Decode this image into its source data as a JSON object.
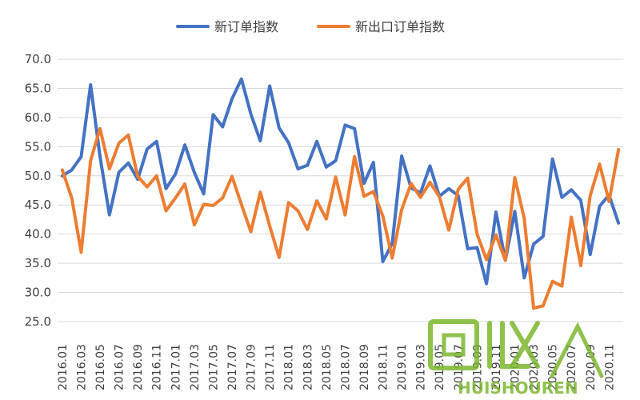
{
  "chart_data": {
    "type": "line",
    "title": "",
    "xlabel": "",
    "ylabel": "",
    "ylim": [
      25.0,
      70.0
    ],
    "y_ticks": [
      "25.0",
      "30.0",
      "35.0",
      "40.0",
      "45.0",
      "50.0",
      "55.0",
      "60.0",
      "65.0",
      "70.0"
    ],
    "y_tick_values": [
      25,
      30,
      35,
      40,
      45,
      50,
      55,
      60,
      65,
      70
    ],
    "grid": true,
    "legend_position": "top",
    "x": [
      "2016.01",
      "2016.02",
      "2016.03",
      "2016.04",
      "2016.05",
      "2016.06",
      "2016.07",
      "2016.08",
      "2016.09",
      "2016.10",
      "2016.11",
      "2016.12",
      "2017.01",
      "2017.02",
      "2017.03",
      "2017.04",
      "2017.05",
      "2017.06",
      "2017.07",
      "2017.08",
      "2017.09",
      "2017.10",
      "2017.11",
      "2017.12",
      "2018.01",
      "2018.02",
      "2018.03",
      "2018.04",
      "2018.05",
      "2018.06",
      "2018.07",
      "2018.08",
      "2018.09",
      "2018.10",
      "2018.11",
      "2018.12",
      "2019.01",
      "2019.02",
      "2019.03",
      "2019.04",
      "2019.05",
      "2019.06",
      "2019.07",
      "2019.08",
      "2019.09",
      "2019.10",
      "2019.11",
      "2019.12",
      "2020.01",
      "2020.02",
      "2020.03",
      "2020.04",
      "2020.05",
      "2020.06",
      "2020.07",
      "2020.08",
      "2020.09",
      "2020.10",
      "2020.11",
      "2020.12"
    ],
    "x_tick_labels": [
      "2016.01",
      "2016.03",
      "2016.05",
      "2016.07",
      "2016.09",
      "2016.11",
      "2017.01",
      "2017.03",
      "2017.05",
      "2017.07",
      "2017.09",
      "2017.11",
      "2018.01",
      "2018.03",
      "2018.05",
      "2018.07",
      "2018.09",
      "2018.11",
      "2019.01",
      "2019.03",
      "2019.05",
      "2019.07",
      "2019.09",
      "2019.11",
      "2020.01",
      "2020.03",
      "2020.05",
      "2020.07",
      "2020.09",
      "2020.11"
    ],
    "series": [
      {
        "name": "新订单指数",
        "color": "#4472C4",
        "values": [
          50.0,
          51.0,
          53.3,
          65.6,
          53.3,
          43.3,
          50.6,
          52.2,
          49.4,
          54.6,
          55.9,
          47.8,
          50.3,
          55.3,
          50.6,
          46.9,
          60.5,
          58.4,
          63.2,
          66.6,
          60.6,
          56.0,
          65.4,
          58.2,
          55.7,
          51.2,
          51.8,
          55.9,
          51.5,
          52.6,
          58.7,
          58.1,
          48.7,
          52.3,
          35.3,
          38.4,
          53.4,
          47.9,
          47.1,
          51.7,
          46.5,
          47.8,
          46.6,
          37.5,
          37.7,
          31.5,
          43.8,
          35.5,
          43.9,
          32.5,
          38.3,
          39.6,
          52.9,
          46.3,
          47.6,
          45.8,
          36.5,
          44.8,
          46.7,
          41.9
        ]
      },
      {
        "name": "新出口订单指数",
        "color": "#ED7D31",
        "values": [
          51.0,
          46.2,
          36.9,
          52.6,
          58.1,
          51.2,
          55.6,
          57.0,
          49.9,
          48.1,
          50.0,
          44.0,
          46.2,
          48.6,
          41.6,
          45.1,
          44.9,
          46.2,
          49.9,
          45.1,
          40.4,
          47.2,
          41.4,
          36.0,
          45.4,
          44.0,
          40.8,
          45.7,
          42.6,
          49.8,
          43.3,
          53.3,
          46.5,
          47.3,
          43.1,
          35.9,
          44.2,
          48.7,
          46.3,
          48.9,
          46.4,
          40.7,
          47.7,
          49.6,
          40.0,
          35.6,
          39.9,
          35.5,
          49.7,
          42.7,
          27.3,
          27.7,
          31.9,
          31.1,
          42.9,
          34.6,
          46.6,
          52.0,
          45.6,
          54.5
        ]
      }
    ]
  }
}
